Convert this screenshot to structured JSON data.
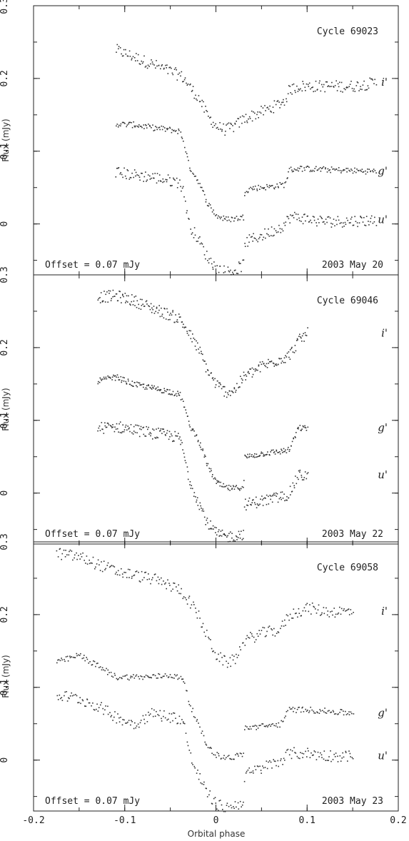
{
  "figure": {
    "xlabel": "Orbital phase",
    "ylabel": "Flux (mJy)"
  },
  "chart_data": [
    {
      "type": "scatter",
      "cycle": "Cycle 69023",
      "date": "2003 May 20",
      "offset_note": "Offset = 0.07 mJy",
      "xlim": [
        -0.2,
        0.2
      ],
      "ylim": [
        -0.07,
        0.3
      ],
      "yticks": [
        0,
        0.1,
        0.2,
        0.3
      ],
      "xticks": [
        -0.2,
        -0.1,
        0,
        0.1,
        0.2
      ],
      "series": [
        {
          "name": "i'",
          "offset": 0.14,
          "x": [
            -0.11,
            -0.09,
            -0.07,
            -0.05,
            -0.04,
            -0.035,
            -0.03,
            -0.02,
            -0.01,
            0.0,
            0.01,
            0.02,
            0.03,
            0.04,
            0.06,
            0.075,
            0.08,
            0.09,
            0.11,
            0.13,
            0.15,
            0.175
          ],
          "y": [
            0.24,
            0.23,
            0.22,
            0.21,
            0.205,
            0.2,
            0.19,
            0.175,
            0.15,
            0.135,
            0.13,
            0.135,
            0.145,
            0.15,
            0.16,
            0.17,
            0.185,
            0.19,
            0.19,
            0.19,
            0.19,
            0.195
          ]
        },
        {
          "name": "g'",
          "offset": 0.07,
          "x": [
            -0.11,
            -0.09,
            -0.07,
            -0.05,
            -0.04,
            -0.035,
            -0.03,
            -0.02,
            -0.01,
            0.0,
            0.01,
            0.02,
            0.03,
            0.031,
            0.04,
            0.06,
            0.075,
            0.08,
            0.09,
            0.11,
            0.13,
            0.15,
            0.175
          ],
          "y": [
            0.138,
            0.137,
            0.133,
            0.13,
            0.128,
            0.11,
            0.08,
            0.06,
            0.03,
            0.012,
            0.007,
            0.008,
            0.01,
            0.047,
            0.05,
            0.052,
            0.055,
            0.075,
            0.077,
            0.076,
            0.075,
            0.074,
            0.073
          ],
          "step": true
        },
        {
          "name": "u'",
          "offset": 0.0,
          "x": [
            -0.11,
            -0.09,
            -0.07,
            -0.05,
            -0.04,
            -0.035,
            -0.03,
            -0.02,
            -0.01,
            0.0,
            0.01,
            0.02,
            0.03,
            0.031,
            0.04,
            0.06,
            0.075,
            0.08,
            0.09,
            0.11,
            0.13,
            0.15,
            0.175
          ],
          "y": [
            0.072,
            0.068,
            0.065,
            0.06,
            0.058,
            0.04,
            0.0,
            -0.02,
            -0.045,
            -0.06,
            -0.065,
            -0.063,
            -0.055,
            -0.025,
            -0.02,
            -0.01,
            0.0,
            0.01,
            0.01,
            0.005,
            0.004,
            0.005,
            0.006
          ],
          "step": true
        }
      ]
    },
    {
      "type": "scatter",
      "cycle": "Cycle 69046",
      "date": "2003 May 22",
      "offset_note": "Offset = 0.07 mJy",
      "xlim": [
        -0.2,
        0.2
      ],
      "ylim": [
        -0.07,
        0.3
      ],
      "yticks": [
        0,
        0.1,
        0.2,
        0.3
      ],
      "xticks": [
        -0.2,
        -0.1,
        0,
        0.1,
        0.2
      ],
      "series": [
        {
          "name": "i'",
          "offset": 0.14,
          "x": [
            -0.13,
            -0.11,
            -0.09,
            -0.07,
            -0.05,
            -0.04,
            -0.03,
            -0.02,
            -0.01,
            0.0,
            0.01,
            0.02,
            0.03,
            0.05,
            0.07,
            0.08,
            0.09,
            0.1
          ],
          "y": [
            0.27,
            0.272,
            0.265,
            0.255,
            0.245,
            0.24,
            0.22,
            0.2,
            0.17,
            0.15,
            0.14,
            0.142,
            0.16,
            0.175,
            0.185,
            0.19,
            0.21,
            0.22
          ]
        },
        {
          "name": "g'",
          "offset": 0.07,
          "x": [
            -0.13,
            -0.11,
            -0.09,
            -0.07,
            -0.05,
            -0.04,
            -0.035,
            -0.03,
            -0.02,
            -0.01,
            0.0,
            0.01,
            0.02,
            0.03,
            0.031,
            0.05,
            0.07,
            0.08,
            0.09,
            0.1
          ],
          "y": [
            0.155,
            0.16,
            0.15,
            0.145,
            0.14,
            0.136,
            0.12,
            0.095,
            0.075,
            0.04,
            0.015,
            0.008,
            0.007,
            0.01,
            0.05,
            0.055,
            0.058,
            0.06,
            0.09,
            0.09
          ],
          "step": true
        },
        {
          "name": "u'",
          "offset": 0.0,
          "x": [
            -0.13,
            -0.11,
            -0.09,
            -0.07,
            -0.05,
            -0.04,
            -0.035,
            -0.03,
            -0.02,
            -0.01,
            0.0,
            0.01,
            0.02,
            0.03,
            0.031,
            0.05,
            0.07,
            0.08,
            0.09,
            0.1
          ],
          "y": [
            0.09,
            0.092,
            0.088,
            0.083,
            0.08,
            0.075,
            0.05,
            0.02,
            -0.01,
            -0.04,
            -0.055,
            -0.06,
            -0.058,
            -0.055,
            -0.015,
            -0.01,
            -0.005,
            0.0,
            0.025,
            0.025
          ],
          "step": true
        }
      ]
    },
    {
      "type": "scatter",
      "cycle": "Cycle 69058",
      "date": "2003 May 23",
      "offset_note": "Offset = 0.07 mJy",
      "xlim": [
        -0.2,
        0.2
      ],
      "ylim": [
        -0.07,
        0.3
      ],
      "yticks": [
        0,
        0.1,
        0.2,
        0.3
      ],
      "xticks": [
        -0.2,
        -0.1,
        0,
        0.1,
        0.2
      ],
      "series": [
        {
          "name": "i'",
          "offset": 0.14,
          "x": [
            -0.175,
            -0.15,
            -0.13,
            -0.11,
            -0.09,
            -0.07,
            -0.05,
            -0.04,
            -0.03,
            -0.02,
            -0.01,
            0.0,
            0.01,
            0.02,
            0.03,
            0.05,
            0.07,
            0.08,
            0.1,
            0.12,
            0.15
          ],
          "y": [
            0.285,
            0.28,
            0.27,
            0.26,
            0.255,
            0.25,
            0.24,
            0.235,
            0.22,
            0.2,
            0.17,
            0.145,
            0.135,
            0.138,
            0.165,
            0.175,
            0.18,
            0.2,
            0.21,
            0.205,
            0.205
          ]
        },
        {
          "name": "g'",
          "offset": 0.07,
          "x": [
            -0.175,
            -0.15,
            -0.13,
            -0.11,
            -0.09,
            -0.07,
            -0.05,
            -0.04,
            -0.035,
            -0.03,
            -0.02,
            -0.01,
            0.0,
            0.01,
            0.02,
            0.03,
            0.031,
            0.05,
            0.07,
            0.08,
            0.1,
            0.12,
            0.15
          ],
          "y": [
            0.135,
            0.145,
            0.13,
            0.115,
            0.115,
            0.115,
            0.118,
            0.113,
            0.11,
            0.08,
            0.05,
            0.02,
            0.008,
            0.004,
            0.005,
            0.01,
            0.045,
            0.047,
            0.05,
            0.07,
            0.07,
            0.068,
            0.065
          ],
          "step": true
        },
        {
          "name": "u'",
          "offset": 0.0,
          "x": [
            -0.175,
            -0.15,
            -0.13,
            -0.11,
            -0.09,
            -0.07,
            -0.05,
            -0.04,
            -0.035,
            -0.03,
            -0.02,
            -0.01,
            0.0,
            0.01,
            0.02,
            0.03,
            0.031,
            0.05,
            0.07,
            0.08,
            0.1,
            0.12,
            0.15
          ],
          "y": [
            0.09,
            0.085,
            0.075,
            0.06,
            0.05,
            0.065,
            0.06,
            0.058,
            0.05,
            0.01,
            -0.02,
            -0.045,
            -0.06,
            -0.065,
            -0.062,
            -0.055,
            -0.02,
            -0.01,
            0.0,
            0.01,
            0.01,
            0.007,
            0.006
          ],
          "step": true
        }
      ]
    }
  ]
}
